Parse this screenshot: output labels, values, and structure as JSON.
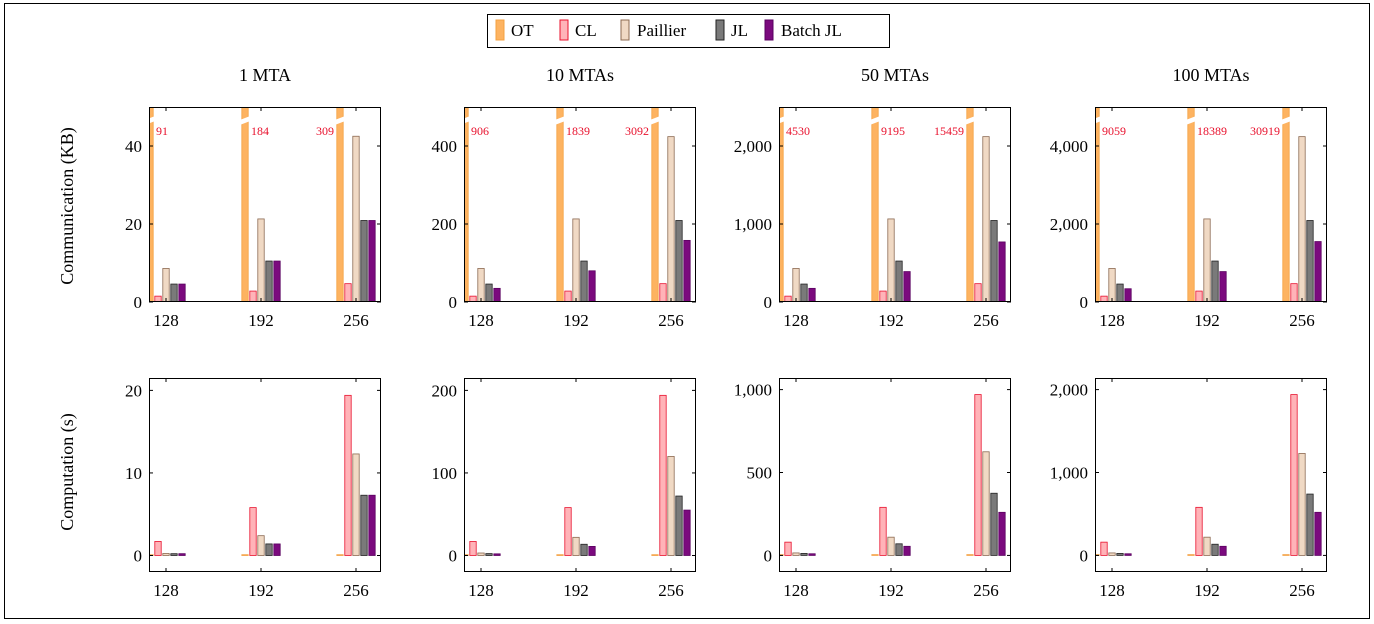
{
  "legend": [
    {
      "name": "OT",
      "fill": "#fdb361",
      "stroke": "#f4a040"
    },
    {
      "name": "CL",
      "fill": "#ffb3b8",
      "stroke": "#e8112d"
    },
    {
      "name": "Paillier",
      "fill": "#f0d9c4",
      "stroke": "#8c6a52"
    },
    {
      "name": "JL",
      "fill": "#7a7a7a",
      "stroke": "#222222"
    },
    {
      "name": "Batch JL",
      "fill": "#7b0a7e",
      "stroke": "#5a0060"
    }
  ],
  "row_labels": [
    "Communication (KB)",
    "Computation (s)"
  ],
  "chart_data": [
    {
      "type": "bar",
      "title": "1 MTA",
      "ylabel": "Communication (KB)",
      "categories": [
        "128",
        "192",
        "256"
      ],
      "ylim": [
        0,
        50
      ],
      "yticks": [
        0,
        20,
        40
      ],
      "ytick_labels": [
        "0",
        "20",
        "40"
      ],
      "series": [
        {
          "name": "OT",
          "values": [
            91,
            184,
            309
          ],
          "broken": true,
          "labels": [
            "91",
            "184",
            "309"
          ]
        },
        {
          "name": "CL",
          "values": [
            1.5,
            2.8,
            4.7
          ]
        },
        {
          "name": "Paillier",
          "values": [
            8.6,
            21.3,
            42.5
          ]
        },
        {
          "name": "JL",
          "values": [
            4.6,
            10.5,
            20.9
          ]
        },
        {
          "name": "Batch JL",
          "values": [
            4.6,
            10.5,
            20.9
          ]
        }
      ]
    },
    {
      "type": "bar",
      "title": "10 MTAs",
      "ylabel": "",
      "categories": [
        "128",
        "192",
        "256"
      ],
      "ylim": [
        0,
        500
      ],
      "yticks": [
        0,
        200,
        400
      ],
      "ytick_labels": [
        "0",
        "200",
        "400"
      ],
      "series": [
        {
          "name": "OT",
          "values": [
            906,
            1839,
            3092
          ],
          "broken": true,
          "labels": [
            "906",
            "1839",
            "3092"
          ]
        },
        {
          "name": "CL",
          "values": [
            15,
            28,
            47
          ]
        },
        {
          "name": "Paillier",
          "values": [
            86,
            213,
            424
          ]
        },
        {
          "name": "JL",
          "values": [
            46,
            105,
            209
          ]
        },
        {
          "name": "Batch JL",
          "values": [
            35,
            80,
            158
          ]
        }
      ]
    },
    {
      "type": "bar",
      "title": "50 MTAs",
      "ylabel": "",
      "categories": [
        "128",
        "192",
        "256"
      ],
      "ylim": [
        0,
        2500
      ],
      "yticks": [
        0,
        1000,
        2000
      ],
      "ytick_labels": [
        "0",
        "1,000",
        "2,000"
      ],
      "series": [
        {
          "name": "OT",
          "values": [
            4530,
            9195,
            15459
          ],
          "broken": true,
          "labels": [
            "4530",
            "9195",
            "15459"
          ]
        },
        {
          "name": "CL",
          "values": [
            75,
            140,
            235
          ]
        },
        {
          "name": "Paillier",
          "values": [
            430,
            1065,
            2120
          ]
        },
        {
          "name": "JL",
          "values": [
            230,
            525,
            1045
          ]
        },
        {
          "name": "Batch JL",
          "values": [
            175,
            390,
            770
          ]
        }
      ]
    },
    {
      "type": "bar",
      "title": "100 MTAs",
      "ylabel": "",
      "categories": [
        "128",
        "192",
        "256"
      ],
      "ylim": [
        0,
        5000
      ],
      "yticks": [
        0,
        2000,
        4000
      ],
      "ytick_labels": [
        "0",
        "2,000",
        "4,000"
      ],
      "series": [
        {
          "name": "OT",
          "values": [
            9059,
            18389,
            30919
          ],
          "broken": true,
          "labels": [
            "9059",
            "18389",
            "30919"
          ]
        },
        {
          "name": "CL",
          "values": [
            150,
            280,
            470
          ]
        },
        {
          "name": "Paillier",
          "values": [
            860,
            2130,
            4240
          ]
        },
        {
          "name": "JL",
          "values": [
            460,
            1050,
            2090
          ]
        },
        {
          "name": "Batch JL",
          "values": [
            340,
            780,
            1550
          ]
        }
      ]
    },
    {
      "type": "bar",
      "title": "",
      "ylabel": "Computation (s)",
      "categories": [
        "128",
        "192",
        "256"
      ],
      "ylim": [
        -2,
        21.5
      ],
      "yticks": [
        0,
        10,
        20
      ],
      "ytick_labels": [
        "0",
        "10",
        "20"
      ],
      "series": [
        {
          "name": "OT",
          "values": [
            0.02,
            0.03,
            0.05
          ]
        },
        {
          "name": "CL",
          "values": [
            1.7,
            5.8,
            19.4
          ]
        },
        {
          "name": "Paillier",
          "values": [
            0.25,
            2.4,
            12.3
          ]
        },
        {
          "name": "JL",
          "values": [
            0.22,
            1.4,
            7.3
          ]
        },
        {
          "name": "Batch JL",
          "values": [
            0.22,
            1.4,
            7.3
          ]
        }
      ]
    },
    {
      "type": "bar",
      "title": "",
      "ylabel": "",
      "categories": [
        "128",
        "192",
        "256"
      ],
      "ylim": [
        -20,
        215
      ],
      "yticks": [
        0,
        100,
        200
      ],
      "ytick_labels": [
        "0",
        "100",
        "200"
      ],
      "series": [
        {
          "name": "OT",
          "values": [
            0.2,
            0.3,
            0.5
          ]
        },
        {
          "name": "CL",
          "values": [
            17,
            58,
            194
          ]
        },
        {
          "name": "Paillier",
          "values": [
            3,
            22,
            120
          ]
        },
        {
          "name": "JL",
          "values": [
            2.3,
            13.6,
            72
          ]
        },
        {
          "name": "Batch JL",
          "values": [
            2,
            11,
            55
          ]
        }
      ]
    },
    {
      "type": "bar",
      "title": "",
      "ylabel": "",
      "categories": [
        "128",
        "192",
        "256"
      ],
      "ylim": [
        -100,
        1070
      ],
      "yticks": [
        0,
        500,
        1000
      ],
      "ytick_labels": [
        "0",
        "500",
        "1,000"
      ],
      "series": [
        {
          "name": "OT",
          "values": [
            1,
            1.5,
            2.5
          ]
        },
        {
          "name": "CL",
          "values": [
            80,
            290,
            970
          ]
        },
        {
          "name": "Paillier",
          "values": [
            15,
            110,
            625
          ]
        },
        {
          "name": "JL",
          "values": [
            12,
            70,
            375
          ]
        },
        {
          "name": "Batch JL",
          "values": [
            10,
            55,
            260
          ]
        }
      ]
    },
    {
      "type": "bar",
      "title": "",
      "ylabel": "",
      "categories": [
        "128",
        "192",
        "256"
      ],
      "ylim": [
        -200,
        2140
      ],
      "yticks": [
        0,
        1000,
        2000
      ],
      "ytick_labels": [
        "0",
        "1,000",
        "2,000"
      ],
      "series": [
        {
          "name": "OT",
          "values": [
            2,
            3,
            5
          ]
        },
        {
          "name": "CL",
          "values": [
            160,
            580,
            1940
          ]
        },
        {
          "name": "Paillier",
          "values": [
            30,
            220,
            1230
          ]
        },
        {
          "name": "JL",
          "values": [
            24,
            135,
            740
          ]
        },
        {
          "name": "Batch JL",
          "values": [
            20,
            110,
            520
          ]
        }
      ]
    }
  ]
}
